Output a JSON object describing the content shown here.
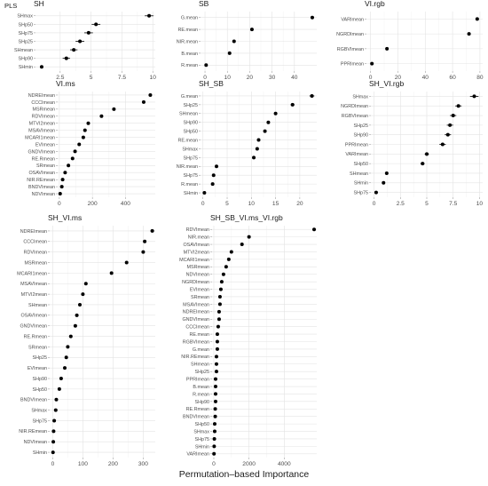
{
  "figure": {
    "label": "PLS",
    "x_title": "Permutation–based Importance"
  },
  "chart_data": [
    {
      "type": "scatter",
      "title": "SH",
      "xlim": [
        0.5,
        10.2
      ],
      "xticks": [
        2.5,
        5.0,
        7.5,
        10.0
      ],
      "grid": true,
      "categories": [
        "SHmax",
        "SHp50",
        "SHp75",
        "SHp25",
        "SHmean",
        "SHp90",
        "SHmin"
      ],
      "values": [
        9.7,
        5.4,
        4.8,
        4.1,
        3.6,
        3.0,
        1.0
      ],
      "err": [
        0.35,
        0.35,
        0.35,
        0.35,
        0.3,
        0.3,
        0.1
      ]
    },
    {
      "type": "scatter",
      "title": "SB",
      "xlim": [
        -2,
        50
      ],
      "xticks": [
        0,
        10,
        20,
        30,
        40
      ],
      "grid": true,
      "categories": [
        "G.mean",
        "RE.mean",
        "NIR.mean",
        "B.mean",
        "R.mean"
      ],
      "values": [
        48,
        21,
        13,
        11,
        0.5
      ],
      "err": [
        0.8,
        0.4,
        0.4,
        0.4,
        0.2
      ]
    },
    {
      "type": "scatter",
      "title": "VI.rgb",
      "xlim": [
        -3,
        82
      ],
      "xticks": [
        0,
        20,
        40,
        60,
        80
      ],
      "grid": true,
      "categories": [
        "VARImean",
        "NGRDImean",
        "RGBVImean",
        "PPRImean"
      ],
      "values": [
        78,
        72,
        12,
        1
      ],
      "err": [
        1.2,
        1.2,
        0.5,
        0.3
      ]
    },
    {
      "type": "scatter",
      "title": "VI.ms",
      "xlim": [
        -10,
        580
      ],
      "xticks": [
        0,
        200,
        400
      ],
      "grid": true,
      "categories": [
        "NDREImean",
        "CCCImean",
        "MSRmean",
        "RDVImean",
        "MTVI2mean",
        "MSAVImean",
        "MCARI1mean",
        "EVImean",
        "GNDVImean",
        "RE.Rmean",
        "SRmean",
        "OSAVImean",
        "NIR.REmean",
        "BNDVImean",
        "NDVImean"
      ],
      "values": [
        550,
        510,
        330,
        255,
        175,
        155,
        145,
        120,
        95,
        80,
        55,
        35,
        20,
        15,
        5
      ],
      "err": [
        8,
        6,
        4,
        4,
        3,
        3,
        3,
        3,
        3,
        3,
        3,
        3,
        2,
        2,
        1
      ]
    },
    {
      "type": "scatter",
      "title": "SH_SB",
      "xlim": [
        -0.5,
        23.5
      ],
      "xticks": [
        0,
        5,
        10,
        15,
        20
      ],
      "grid": true,
      "categories": [
        "G.mean",
        "SHp25",
        "SHmean",
        "SHp90",
        "SHp50",
        "RE.mean",
        "SHmax",
        "SHp75",
        "NIR.mean",
        "SHp75",
        "R.mean",
        "SHmin"
      ],
      "values": [
        22.5,
        18.5,
        15,
        13.5,
        12.8,
        11.5,
        11.2,
        10.5,
        2.8,
        2.2,
        2,
        0.3
      ],
      "err": [
        0.5,
        0.4,
        0.3,
        0.3,
        0.3,
        0.3,
        0.3,
        0.3,
        0.15,
        0.15,
        0.1,
        0.05
      ]
    },
    {
      "type": "scatter",
      "title": "SH_VI.rgb",
      "xlim": [
        -0.3,
        10.3
      ],
      "xticks": [
        0.0,
        2.5,
        5.0,
        7.5,
        10.0
      ],
      "grid": true,
      "categories": [
        "SHmax",
        "NGRDImean",
        "RGBVImean",
        "SHp25",
        "SHp90",
        "PPRImean",
        "VARImean",
        "SHp50",
        "SHmean",
        "SHmin",
        "SHp75"
      ],
      "values": [
        9.5,
        8.0,
        7.5,
        7.2,
        7.0,
        6.5,
        5.0,
        4.6,
        1.2,
        0.9,
        0.2
      ],
      "err": [
        0.4,
        0.3,
        0.3,
        0.3,
        0.3,
        0.3,
        0.2,
        0.2,
        0.05,
        0.05,
        0.05
      ]
    },
    {
      "type": "scatter",
      "title": "SH_VI.ms",
      "xlim": [
        -10,
        340
      ],
      "xticks": [
        0,
        100,
        200,
        300
      ],
      "grid": true,
      "categories": [
        "NDREImean",
        "CCCImean",
        "RDVImean",
        "MSRmean",
        "MCARI1mean",
        "MSAVImean",
        "MTVI2mean",
        "SHmean",
        "OSAVImean",
        "GNDVImean",
        "RE.Rmean",
        "SRmean",
        "SHp25",
        "EVImean",
        "SHp90",
        "SHp50",
        "BNDVImean",
        "SHmax",
        "SHp75",
        "NIR.REmean",
        "NDVImean",
        "SHmin"
      ],
      "values": [
        330,
        305,
        300,
        245,
        195,
        110,
        100,
        90,
        80,
        75,
        60,
        50,
        45,
        40,
        28,
        22,
        12,
        10,
        5,
        3,
        2,
        1
      ],
      "err": [
        6,
        4,
        4,
        3,
        3,
        2,
        2,
        2,
        2,
        2,
        2,
        2,
        2,
        2,
        1,
        1,
        1,
        1,
        1,
        1,
        1,
        1
      ]
    },
    {
      "type": "scatter",
      "title": "SH_SB_VI.ms_VI.rgb",
      "xlim": [
        -100,
        5850
      ],
      "xticks": [
        0,
        2000,
        4000
      ],
      "grid": true,
      "categories": [
        "RDVImean",
        "NIR.mean",
        "OSAVImean",
        "MTVI2mean",
        "MCARI1mean",
        "MSRmean",
        "NDVImean",
        "NGRDImean",
        "EVImean",
        "SRmean",
        "MSAVImean",
        "NDREImean",
        "GNDVImean",
        "CCCImean",
        "RE.mean",
        "RGBVImean",
        "G.mean",
        "NIR.REmean",
        "SHmean",
        "SHp25",
        "PPRImean",
        "B.mean",
        "R.mean",
        "SHp90",
        "RE.Rmean",
        "BNDVImean",
        "SHp50",
        "SHmax",
        "SHp75",
        "SHmin",
        "VARImean"
      ],
      "values": [
        5700,
        2000,
        1600,
        1000,
        850,
        700,
        550,
        450,
        400,
        350,
        350,
        300,
        300,
        250,
        200,
        200,
        200,
        150,
        150,
        150,
        100,
        100,
        100,
        100,
        80,
        80,
        50,
        50,
        30,
        20,
        10
      ],
      "err": [
        0,
        0,
        0,
        0,
        0,
        0,
        0,
        0,
        0,
        0,
        0,
        0,
        0,
        0,
        0,
        0,
        0,
        0,
        0,
        0,
        0,
        0,
        0,
        0,
        0,
        0,
        0,
        0,
        0,
        0,
        0
      ]
    }
  ]
}
